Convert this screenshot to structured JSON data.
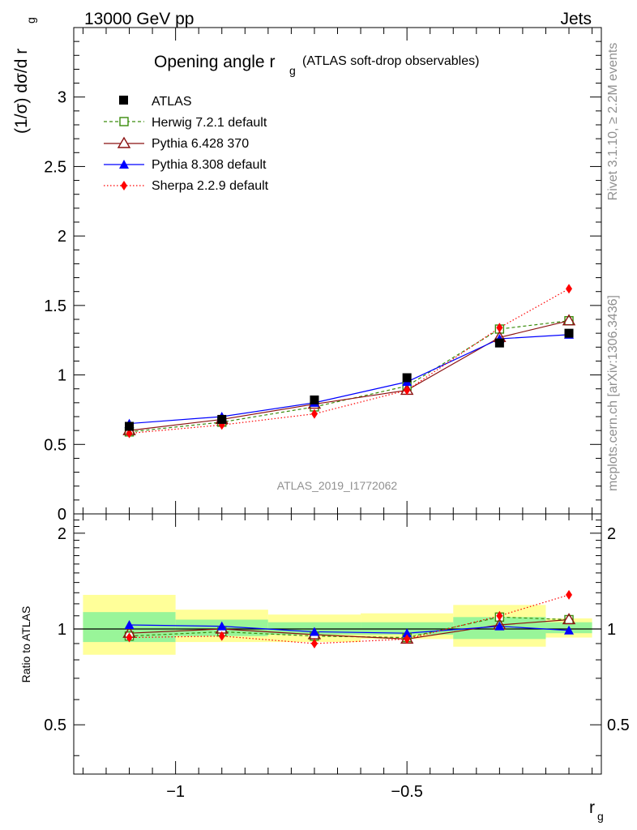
{
  "header": {
    "left": "13000 GeV pp",
    "right": "Jets"
  },
  "side": {
    "rivet": "Rivet 3.1.10, ≥ 2.2M events",
    "mcplots": "mcplots.cern.ch [arXiv:1306.3436]"
  },
  "chart_data": [
    {
      "type": "line",
      "title_main": "Opening angle r",
      "title_sub": "g",
      "title_extra": "(ATLAS soft-drop observables)",
      "ylabel_main": "(1/σ) dσ/d r",
      "ylabel_sub": "g",
      "analysis_label": "ATLAS_2019_I1772062",
      "xlim": [
        -1.22,
        -0.08
      ],
      "ylim": [
        0,
        3.5
      ],
      "yticks": [
        0,
        0.5,
        1,
        1.5,
        2,
        2.5,
        3
      ],
      "ytick_labels": [
        "0",
        "0.5",
        "1",
        "1.5",
        "2",
        "2.5",
        "3"
      ],
      "x": [
        -1.1,
        -0.9,
        -0.7,
        -0.5,
        -0.3,
        -0.15
      ],
      "legend_position": "top-left",
      "series": [
        {
          "name": "ATLAS",
          "marker": "square-filled",
          "line": "none",
          "color": "#000000",
          "values": [
            0.63,
            0.68,
            0.82,
            0.98,
            1.23,
            1.3
          ]
        },
        {
          "name": "Herwig 7.2.1 default",
          "marker": "square-open",
          "line": "dashed",
          "color": "#3a8c0c",
          "values": [
            0.59,
            0.66,
            0.77,
            0.92,
            1.33,
            1.39
          ]
        },
        {
          "name": "Pythia 6.428 370",
          "marker": "triangle-open",
          "line": "solid",
          "color": "#8b1111",
          "values": [
            0.6,
            0.68,
            0.79,
            0.89,
            1.27,
            1.39
          ]
        },
        {
          "name": "Pythia 8.308 default",
          "marker": "triangle-filled",
          "line": "solid",
          "color": "#0000ff",
          "values": [
            0.65,
            0.7,
            0.8,
            0.95,
            1.26,
            1.29
          ]
        },
        {
          "name": "Sherpa 2.2.9 default",
          "marker": "diamond-filled",
          "line": "dotted",
          "color": "#ff0000",
          "values": [
            0.58,
            0.64,
            0.72,
            0.89,
            1.34,
            1.62
          ]
        }
      ]
    },
    {
      "type": "line",
      "ylabel": "Ratio to ATLAS",
      "xlabel_main": "r",
      "xlabel_sub": "g",
      "xlim": [
        -1.22,
        -0.08
      ],
      "ylim": [
        0.35,
        2.3
      ],
      "yticks": [
        0.5,
        1,
        2
      ],
      "ytick_labels": [
        "0.5",
        "1",
        "2"
      ],
      "xticks": [
        -1,
        -0.5
      ],
      "xtick_labels": [
        "−1",
        "−0.5"
      ],
      "bins": [
        [
          -1.2,
          -1.0
        ],
        [
          -1.0,
          -0.8
        ],
        [
          -0.8,
          -0.6
        ],
        [
          -0.6,
          -0.4
        ],
        [
          -0.4,
          -0.2
        ],
        [
          -0.2,
          -0.1
        ]
      ],
      "band_inner": [
        [
          0.91,
          1.13
        ],
        [
          0.95,
          1.07
        ],
        [
          0.96,
          1.05
        ],
        [
          0.96,
          1.05
        ],
        [
          0.93,
          1.09
        ],
        [
          0.97,
          1.05
        ]
      ],
      "band_outer": [
        [
          0.83,
          1.28
        ],
        [
          0.91,
          1.15
        ],
        [
          0.91,
          1.11
        ],
        [
          0.93,
          1.12
        ],
        [
          0.88,
          1.19
        ],
        [
          0.94,
          1.08
        ]
      ],
      "band_colors": {
        "inner": "#99f599",
        "outer": "#ffff99"
      },
      "x": [
        -1.1,
        -0.9,
        -0.7,
        -0.5,
        -0.3,
        -0.15
      ],
      "series": [
        {
          "name": "Herwig 7.2.1 default",
          "values": [
            0.95,
            0.98,
            0.95,
            0.94,
            1.09,
            1.07
          ]
        },
        {
          "name": "Pythia 6.428 370",
          "values": [
            0.97,
            1.0,
            0.96,
            0.93,
            1.03,
            1.07
          ]
        },
        {
          "name": "Pythia 8.308 default",
          "values": [
            1.03,
            1.02,
            0.98,
            0.97,
            1.02,
            0.99
          ]
        },
        {
          "name": "Sherpa 2.2.9 default",
          "values": [
            0.94,
            0.95,
            0.9,
            0.93,
            1.1,
            1.28
          ]
        }
      ]
    }
  ]
}
